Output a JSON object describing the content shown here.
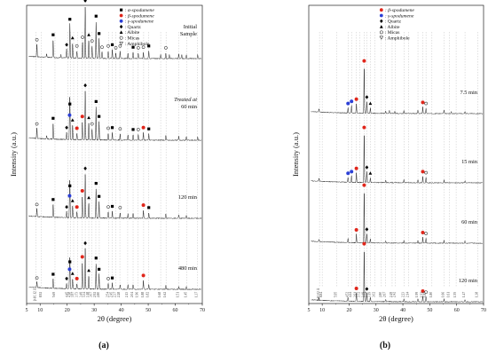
{
  "chart_data": [
    {
      "type": "line",
      "panel_label": "(a)",
      "xlabel": "2θ (degree)",
      "ylabel": "Intensity (a.u.)",
      "xlim": [
        5,
        70
      ],
      "x_ticks": [
        5,
        10,
        20,
        30,
        40,
        50,
        60,
        70
      ],
      "legend": [
        {
          "symbol": "■",
          "color": "#000000",
          "label": "α-spodumene"
        },
        {
          "symbol": "●",
          "color": "#e0261b",
          "label": "β-spodumene"
        },
        {
          "symbol": "●",
          "color": "#2b3fd6",
          "label": "γ-spodumene"
        },
        {
          "symbol": "◆",
          "color": "#000000",
          "label": "Quartz"
        },
        {
          "symbol": "▲",
          "color": "#000000",
          "label": "Albite"
        },
        {
          "symbol": "○",
          "color": "#000000",
          "label": "Micas"
        },
        {
          "symbol": "∇",
          "color": "#000000",
          "label": "Amphibole"
        }
      ],
      "series": [
        {
          "name": "Initial Sample",
          "peaks": [
            [
              8.8,
              22
            ],
            [
              12.4,
              6
            ],
            [
              14.8,
              30
            ],
            [
              17.7,
              5
            ],
            [
              19.8,
              14
            ],
            [
              21.0,
              55
            ],
            [
              22.0,
              25
            ],
            [
              23.6,
              12
            ],
            [
              25.7,
              26
            ],
            [
              26.7,
              85
            ],
            [
              28.0,
              30
            ],
            [
              29.2,
              20
            ],
            [
              30.7,
              60
            ],
            [
              31.8,
              32
            ],
            [
              32.9,
              10
            ],
            [
              35.2,
              12
            ],
            [
              36.7,
              14
            ],
            [
              38.0,
              9
            ],
            [
              39.6,
              12
            ],
            [
              42.5,
              8
            ],
            [
              44.4,
              10
            ],
            [
              46.3,
              9
            ],
            [
              48.2,
              10
            ],
            [
              50.2,
              12
            ],
            [
              54.6,
              7
            ],
            [
              56.5,
              9
            ],
            [
              57.8,
              6
            ],
            [
              61.3,
              7
            ],
            [
              62.4,
              6
            ],
            [
              64.1,
              6
            ],
            [
              68.3,
              6
            ]
          ]
        },
        {
          "name": "60 min",
          "label_style": "Treated at 60 min",
          "peaks": [
            [
              8.8,
              18
            ],
            [
              12.4,
              5
            ],
            [
              14.8,
              27
            ],
            [
              19.8,
              12
            ],
            [
              20.9,
              32
            ],
            [
              21.0,
              50
            ],
            [
              22.0,
              24
            ],
            [
              23.6,
              11
            ],
            [
              25.6,
              30
            ],
            [
              26.7,
              80
            ],
            [
              28.0,
              28
            ],
            [
              29.2,
              18
            ],
            [
              30.7,
              54
            ],
            [
              31.8,
              30
            ],
            [
              35.2,
              11
            ],
            [
              36.7,
              12
            ],
            [
              39.6,
              10
            ],
            [
              42.5,
              8
            ],
            [
              44.4,
              9
            ],
            [
              46.3,
              9
            ],
            [
              48.2,
              12
            ],
            [
              50.2,
              10
            ],
            [
              56.5,
              8
            ],
            [
              61.3,
              6
            ],
            [
              64.1,
              6
            ],
            [
              68.3,
              5
            ]
          ]
        },
        {
          "name": "120 min",
          "peaks": [
            [
              8.8,
              14
            ],
            [
              14.8,
              22
            ],
            [
              19.8,
              10
            ],
            [
              20.9,
              28
            ],
            [
              21.0,
              44
            ],
            [
              22.0,
              20
            ],
            [
              23.6,
              10
            ],
            [
              25.6,
              36
            ],
            [
              26.7,
              72
            ],
            [
              28.0,
              25
            ],
            [
              30.7,
              48
            ],
            [
              31.8,
              27
            ],
            [
              35.2,
              10
            ],
            [
              36.7,
              11
            ],
            [
              39.6,
              9
            ],
            [
              42.5,
              7
            ],
            [
              44.4,
              8
            ],
            [
              48.2,
              13
            ],
            [
              50.2,
              9
            ],
            [
              56.5,
              7
            ],
            [
              61.3,
              6
            ],
            [
              64.1,
              5
            ]
          ]
        },
        {
          "name": "480 min",
          "peaks": [
            [
              8.8,
              10
            ],
            [
              14.8,
              16
            ],
            [
              19.8,
              9
            ],
            [
              20.9,
              24
            ],
            [
              21.0,
              36
            ],
            [
              22.0,
              17
            ],
            [
              23.6,
              9
            ],
            [
              25.6,
              44
            ],
            [
              26.7,
              66
            ],
            [
              28.0,
              22
            ],
            [
              30.7,
              42
            ],
            [
              31.8,
              24
            ],
            [
              35.2,
              9
            ],
            [
              36.7,
              10
            ],
            [
              39.6,
              8
            ],
            [
              42.5,
              7
            ],
            [
              44.4,
              7
            ],
            [
              48.2,
              14
            ],
            [
              50.2,
              8
            ],
            [
              56.5,
              6
            ],
            [
              61.3,
              5
            ],
            [
              64.1,
              5
            ]
          ]
        }
      ],
      "bottom_labels": [
        {
          "x": 8.5,
          "text": "β-10.12 Å"
        },
        {
          "x": 10.5,
          "text": "8.92"
        },
        {
          "x": 15.5,
          "text": "5.69"
        },
        {
          "x": 20.3,
          "text": "4.45"
        },
        {
          "x": 21.2,
          "text": "4.18"
        },
        {
          "x": 22.4,
          "text": "3.97"
        },
        {
          "x": 23.8,
          "text": "3.73"
        },
        {
          "x": 25.5,
          "text": "3.49"
        },
        {
          "x": 26.7,
          "text": "3.34"
        },
        {
          "x": 28.0,
          "text": "3.18"
        },
        {
          "x": 29.1,
          "text": "3.07"
        },
        {
          "x": 30.6,
          "text": "2.92"
        },
        {
          "x": 31.9,
          "text": "2.80"
        },
        {
          "x": 35.3,
          "text": "2.54"
        },
        {
          "x": 36.6,
          "text": "2.45"
        },
        {
          "x": 38.0,
          "text": "2.37"
        },
        {
          "x": 39.5,
          "text": "2.28"
        },
        {
          "x": 42.4,
          "text": "2.13"
        },
        {
          "x": 44.4,
          "text": "2.04"
        },
        {
          "x": 46.2,
          "text": "1.96"
        },
        {
          "x": 48.3,
          "text": "1.88"
        },
        {
          "x": 50.1,
          "text": "1.82"
        },
        {
          "x": 54.6,
          "text": "1.68"
        },
        {
          "x": 56.6,
          "text": "1.62"
        },
        {
          "x": 61.3,
          "text": "1.51"
        },
        {
          "x": 64.2,
          "text": "1.45"
        },
        {
          "x": 68.2,
          "text": "1.37"
        }
      ]
    },
    {
      "type": "line",
      "panel_label": "(b)",
      "xlabel": "2θ (degree)",
      "ylabel": "Intensity (a.u.)",
      "xlim": [
        5,
        70
      ],
      "x_ticks": [
        5,
        10,
        20,
        30,
        40,
        50,
        60,
        70
      ],
      "legend": [
        {
          "symbol": "●",
          "color": "#e0261b",
          "label": "β-spodumene"
        },
        {
          "symbol": "●",
          "color": "#2b3fd6",
          "label": "γ-spodumene"
        },
        {
          "symbol": "◆",
          "color": "#000000",
          "label": "Quartz"
        },
        {
          "symbol": "▲",
          "color": "#000000",
          "label": "Albite"
        },
        {
          "symbol": "○",
          "color": "#000000",
          "label": "Micas"
        },
        {
          "symbol": "∇",
          "color": "#000000",
          "label": "Amphibole"
        }
      ],
      "series": [
        {
          "name": "7.5 min",
          "peaks": [
            [
              8.8,
              7
            ],
            [
              19.6,
              10
            ],
            [
              20.9,
              14
            ],
            [
              22.7,
              18
            ],
            [
              25.6,
              90
            ],
            [
              26.6,
              22
            ],
            [
              27.9,
              10
            ],
            [
              33.6,
              5
            ],
            [
              35.0,
              5
            ],
            [
              37.0,
              4
            ],
            [
              40.4,
              6
            ],
            [
              45.6,
              6
            ],
            [
              47.4,
              12
            ],
            [
              48.6,
              10
            ],
            [
              55.3,
              6
            ],
            [
              58.0,
              4
            ],
            [
              63.1,
              4
            ]
          ]
        },
        {
          "name": "15 min",
          "peaks": [
            [
              8.8,
              6
            ],
            [
              19.6,
              9
            ],
            [
              20.9,
              12
            ],
            [
              22.7,
              18
            ],
            [
              25.6,
              95
            ],
            [
              26.6,
              20
            ],
            [
              27.9,
              9
            ],
            [
              33.6,
              5
            ],
            [
              40.4,
              6
            ],
            [
              45.6,
              6
            ],
            [
              47.4,
              12
            ],
            [
              48.6,
              10
            ],
            [
              55.3,
              5
            ],
            [
              63.1,
              4
            ]
          ]
        },
        {
          "name": "60 min",
          "peaks": [
            [
              8.8,
              5
            ],
            [
              19.6,
              8
            ],
            [
              22.7,
              16
            ],
            [
              25.6,
              100
            ],
            [
              26.6,
              17
            ],
            [
              27.9,
              8
            ],
            [
              33.6,
              4
            ],
            [
              40.4,
              5
            ],
            [
              45.6,
              5
            ],
            [
              47.4,
              11
            ],
            [
              48.6,
              9
            ],
            [
              55.3,
              5
            ],
            [
              63.1,
              4
            ]
          ]
        },
        {
          "name": "120 min",
          "peaks": [
            [
              8.8,
              5
            ],
            [
              19.6,
              7
            ],
            [
              22.7,
              16
            ],
            [
              25.6,
              100
            ],
            [
              26.6,
              15
            ],
            [
              27.9,
              8
            ],
            [
              33.6,
              4
            ],
            [
              40.4,
              5
            ],
            [
              45.6,
              5
            ],
            [
              47.4,
              11
            ],
            [
              48.6,
              9
            ],
            [
              55.3,
              5
            ],
            [
              63.1,
              4
            ]
          ]
        }
      ],
      "bottom_labels": [
        {
          "x": 9.0,
          "text": "β-10.02 Å"
        },
        {
          "x": 10.0,
          "text": "8.84"
        },
        {
          "x": 15.4,
          "text": "5.95"
        },
        {
          "x": 19.6,
          "text": "4.52"
        },
        {
          "x": 20.9,
          "text": "4.24"
        },
        {
          "x": 22.7,
          "text": "3.91"
        },
        {
          "x": 23.9,
          "text": "3.72"
        },
        {
          "x": 25.6,
          "text": "3.49"
        },
        {
          "x": 26.6,
          "text": "3.34"
        },
        {
          "x": 27.9,
          "text": "3.19"
        },
        {
          "x": 29.5,
          "text": "3.02"
        },
        {
          "x": 32.0,
          "text": "2.80"
        },
        {
          "x": 33.6,
          "text": "2.67"
        },
        {
          "x": 36.0,
          "text": "2.49"
        },
        {
          "x": 37.1,
          "text": "2.42"
        },
        {
          "x": 40.4,
          "text": "2.23"
        },
        {
          "x": 42.2,
          "text": "2.14"
        },
        {
          "x": 45.6,
          "text": "1.99"
        },
        {
          "x": 47.4,
          "text": "1.92"
        },
        {
          "x": 48.6,
          "text": "1.87"
        },
        {
          "x": 50.8,
          "text": "1.80"
        },
        {
          "x": 55.3,
          "text": "1.66"
        },
        {
          "x": 57.3,
          "text": "1.61"
        },
        {
          "x": 59.8,
          "text": "1.55"
        },
        {
          "x": 63.1,
          "text": "1.47"
        },
        {
          "x": 67.8,
          "text": "1.38"
        }
      ]
    }
  ]
}
